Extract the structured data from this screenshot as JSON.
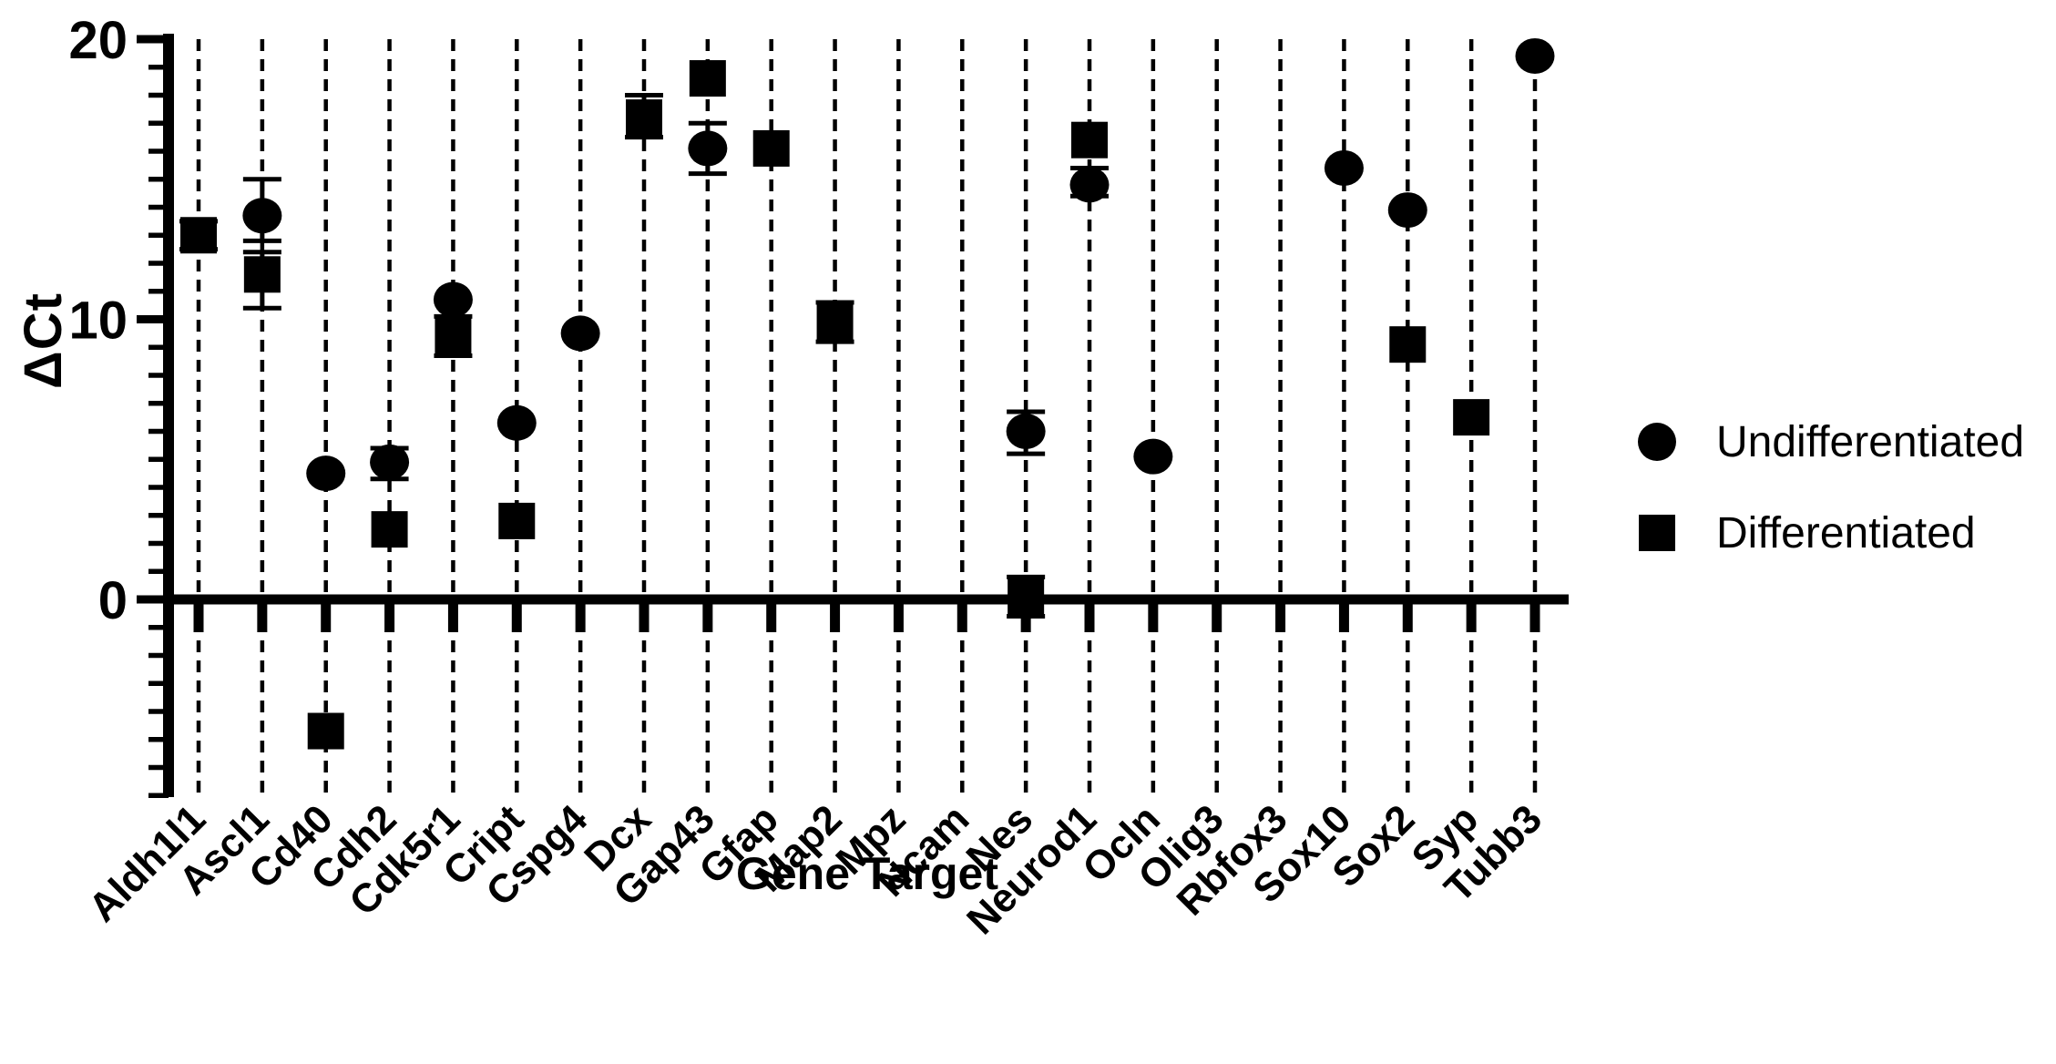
{
  "legend": [
    {
      "marker": "circle",
      "label": "Undifferentiated"
    },
    {
      "marker": "square",
      "label": "Differentiated"
    }
  ],
  "chart_data": {
    "type": "scatter",
    "title": "",
    "xlabel": "Gene Target",
    "ylabel": "ΔCt",
    "ylim": [
      -7,
      20
    ],
    "y_major_ticks": [
      20,
      10,
      0
    ],
    "y_minor_tick_interval": 1,
    "grid": "vertical-dashed-lines-per-category",
    "legend_position": "right",
    "marker_color": "#000000",
    "background_color": "#ffffff",
    "categories": [
      "Aldh1l1",
      "Ascl1",
      "Cd40",
      "Cdh2",
      "Cdk5r1",
      "Cript",
      "Cspg4",
      "Dcx",
      "Gap43",
      "Gfap",
      "Map2",
      "Mpz",
      "Ncam",
      "Nes",
      "Neurod1",
      "Ocln",
      "Olig3",
      "Rbfox3",
      "Sox10",
      "Sox2",
      "Syp",
      "Tubb3"
    ],
    "series": [
      {
        "name": "Undifferentiated",
        "marker": "circle",
        "values": [
          null,
          13.7,
          4.5,
          4.9,
          10.7,
          6.3,
          9.5,
          null,
          16.1,
          null,
          null,
          null,
          null,
          6.0,
          14.8,
          5.1,
          null,
          null,
          15.4,
          13.9,
          null,
          19.4
        ],
        "error_low": [
          null,
          12.8,
          null,
          4.3,
          null,
          null,
          null,
          null,
          15.2,
          null,
          null,
          null,
          null,
          5.2,
          14.4,
          null,
          null,
          null,
          null,
          null,
          null,
          null
        ],
        "error_high": [
          null,
          15.0,
          null,
          5.4,
          null,
          null,
          null,
          null,
          17.0,
          null,
          null,
          null,
          null,
          6.7,
          15.4,
          null,
          null,
          null,
          null,
          null,
          null,
          null
        ]
      },
      {
        "name": "Differentiated",
        "marker": "square",
        "values": [
          13.0,
          11.6,
          -4.7,
          2.5,
          9.4,
          2.8,
          null,
          17.2,
          18.6,
          16.1,
          9.9,
          null,
          null,
          0.1,
          16.4,
          null,
          null,
          null,
          null,
          9.1,
          6.5,
          null
        ],
        "error_low": [
          12.5,
          10.4,
          null,
          null,
          8.7,
          null,
          null,
          16.5,
          null,
          null,
          9.2,
          null,
          null,
          -0.6,
          null,
          null,
          null,
          null,
          null,
          null,
          null,
          null
        ],
        "error_high": [
          13.5,
          12.4,
          null,
          null,
          10.1,
          null,
          null,
          18.0,
          null,
          null,
          10.6,
          null,
          null,
          0.8,
          null,
          null,
          null,
          null,
          null,
          null,
          null,
          null
        ]
      }
    ]
  }
}
